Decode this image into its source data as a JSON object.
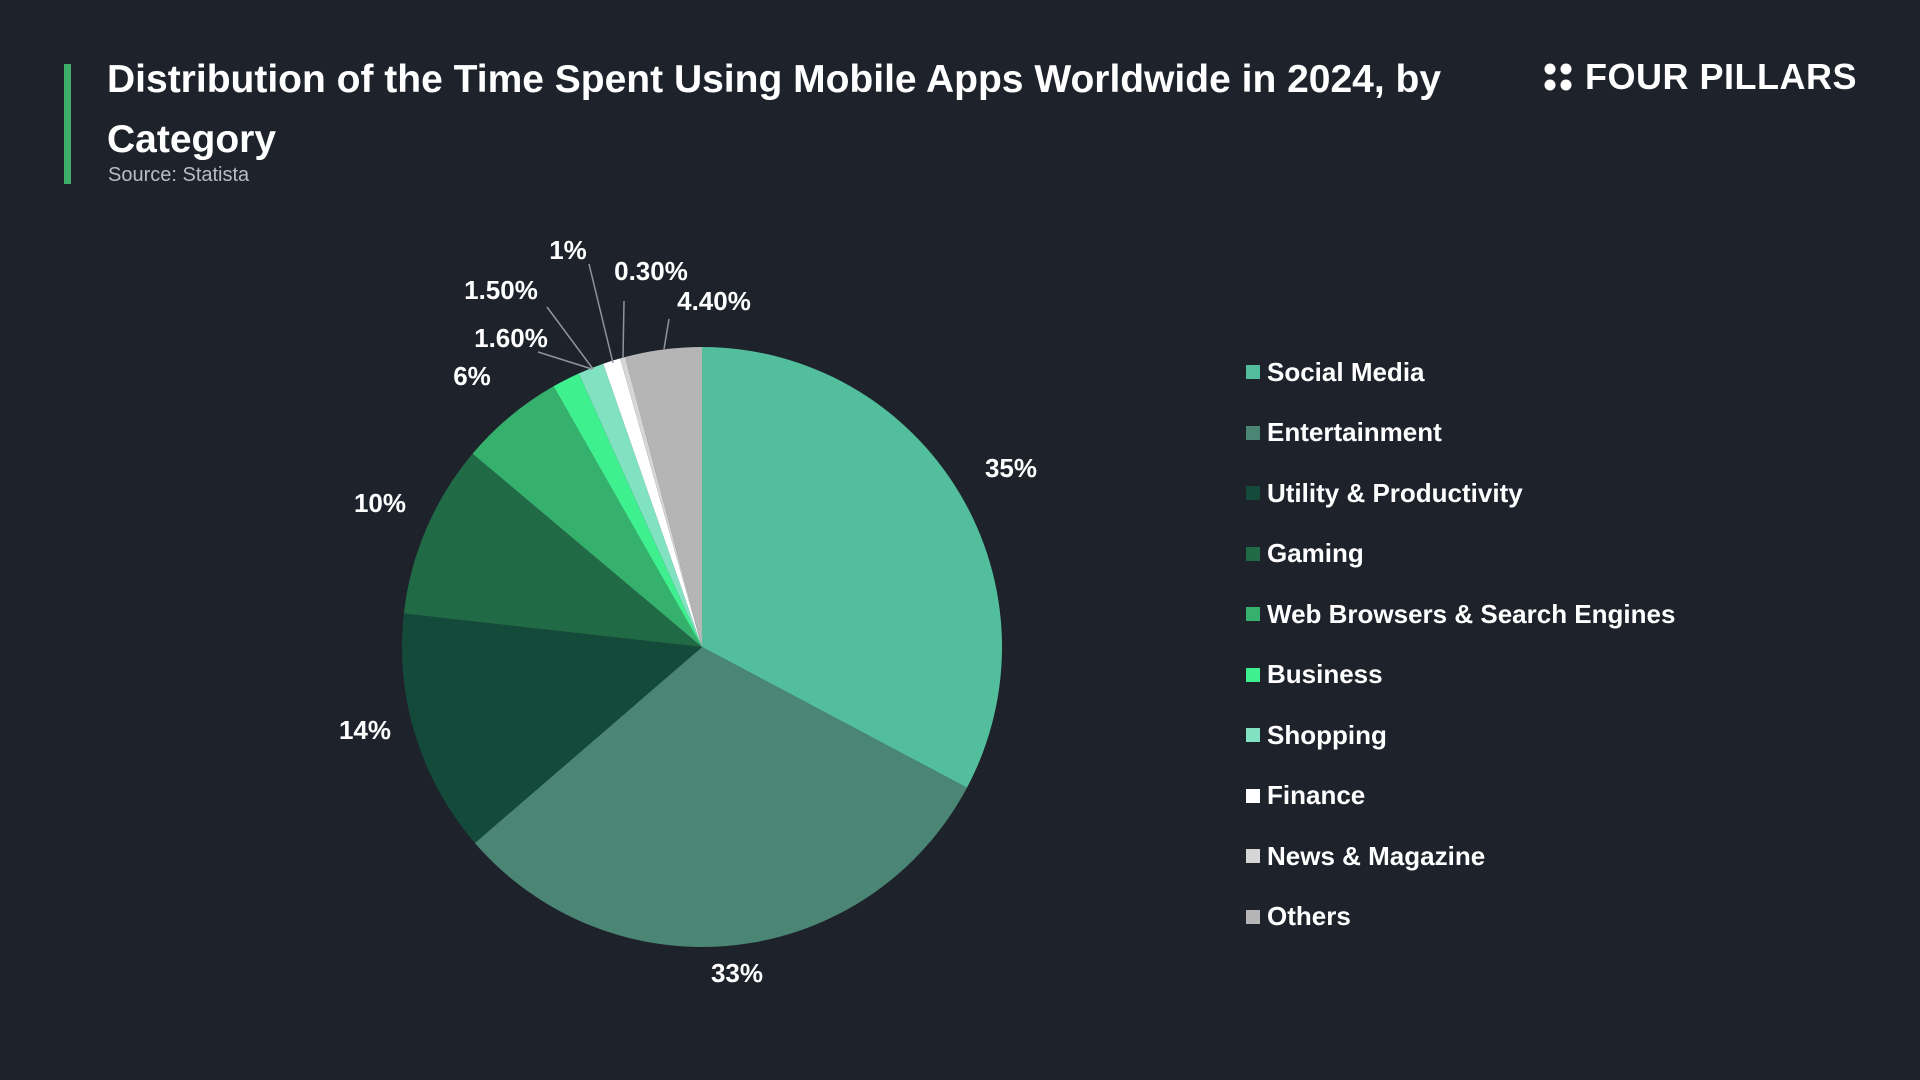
{
  "header": {
    "title": "Distribution of the Time Spent Using Mobile Apps Worldwide in 2024, by Category",
    "source": "Source: Statista",
    "brand": "FOUR PILLARS",
    "accent_color": "#3fae6a"
  },
  "chart_data": {
    "type": "pie",
    "title": "Distribution of the Time Spent Using Mobile Apps Worldwide in 2024, by Category",
    "start": "12 o'clock",
    "direction": "clockwise",
    "legend_position": "right",
    "slices": [
      {
        "label": "Social Media",
        "value": 35,
        "display": "35%",
        "color": "#52be9b"
      },
      {
        "label": "Entertainment",
        "value": 33,
        "display": "33%",
        "color": "#4a8673"
      },
      {
        "label": "Utility & Productivity",
        "value": 14,
        "display": "14%",
        "color": "#144a3a"
      },
      {
        "label": "Gaming",
        "value": 10,
        "display": "10%",
        "color": "#206b45"
      },
      {
        "label": "Web Browsers & Search Engines",
        "value": 6,
        "display": "6%",
        "color": "#35b06d"
      },
      {
        "label": "Business",
        "value": 1.6,
        "display": "1.60%",
        "color": "#3ef08e"
      },
      {
        "label": "Shopping",
        "value": 1.5,
        "display": "1.50%",
        "color": "#80e2c0"
      },
      {
        "label": "Finance",
        "value": 1,
        "display": "1%",
        "color": "#ffffff"
      },
      {
        "label": "News & Magazine",
        "value": 0.3,
        "display": "0.30%",
        "color": "#d6d6d6"
      },
      {
        "label": "Others",
        "value": 4.4,
        "display": "4.40%",
        "color": "#b5b5b5"
      }
    ]
  }
}
